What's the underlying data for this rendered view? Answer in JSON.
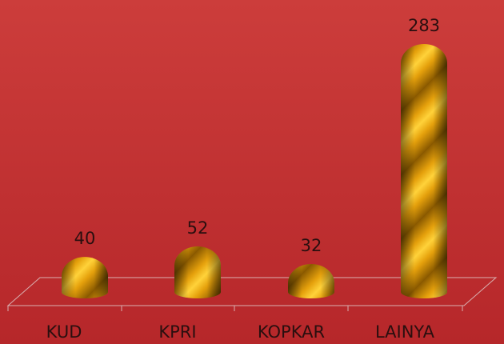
{
  "chart_data": {
    "type": "bar3d",
    "categories": [
      "KUD",
      "KPRI",
      "KOPKAR",
      "LAINYA"
    ],
    "values": [
      40,
      52,
      32,
      283
    ],
    "color": "#e8a00a"
  }
}
